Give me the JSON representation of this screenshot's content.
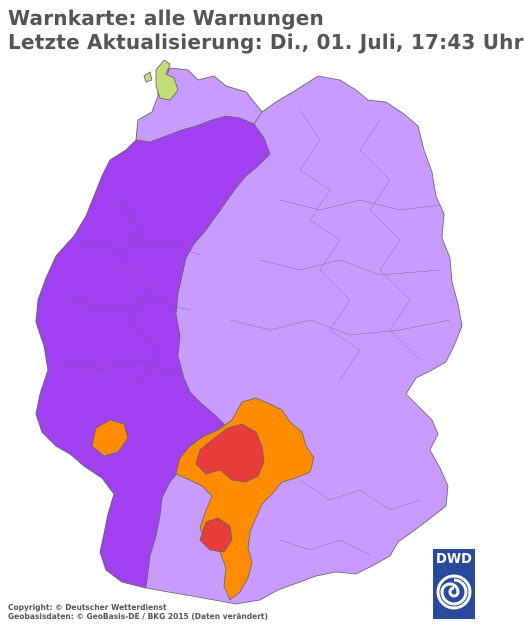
{
  "header": {
    "title_line1": "Warnkarte: alle Warnungen",
    "title_line2": "Letzte Aktualisierung: Di., 01. Juli, 17:43 Uhr"
  },
  "legend_colors": {
    "hitze_stark": "#a040f0",
    "hitze": "#c79bff",
    "unwetter_gewitter": "#e83b3b",
    "gewitter": "#ff8c00",
    "uv": "#c4dc78",
    "border": "#666666"
  },
  "map": {
    "regions": [
      "west-germany-strong-warning",
      "east-germany-warning",
      "south-germany-warning",
      "thunderstorm-warning-bavaria",
      "severe-warning-bavaria",
      "thunderstorm-warning-rlp",
      "severe-warning-bw",
      "thunderstorm-warning-south",
      "north-frisia-islands"
    ]
  },
  "footer": {
    "copyright": "Copyright: © Deutscher Wetterdienst",
    "geobasis": "Geobasisdaten: © GeoBasis-DE / BKG 2015 (Daten verändert)",
    "logo_text": "DWD"
  }
}
